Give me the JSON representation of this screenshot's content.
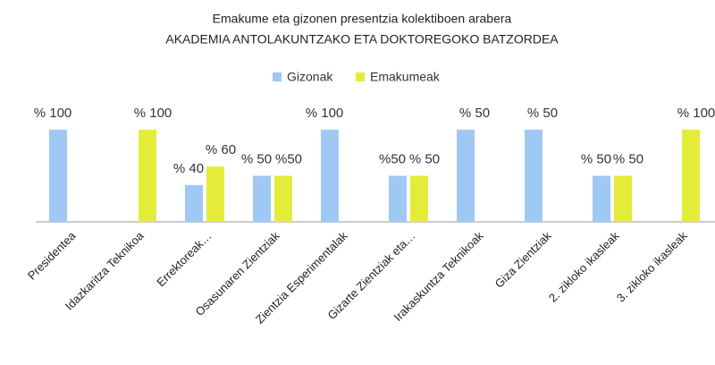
{
  "chart_data": {
    "type": "bar",
    "title": "Emakume eta gizonen presentzia kolektiboen arabera",
    "subtitle": "AKADEMIA ANTOLAKUNTZAKO ETA DOKTOREGOKO BATZORDEA",
    "categories": [
      "Presidentea",
      "Idazkaritza Teknikoa",
      "Errektoreak…",
      "Osasunaren Zientziak",
      "Zientzia Esperimentalak",
      "Gizarte Zientziak eta…",
      "Irakaskuntza Teknikoak",
      "Giza Zientziak",
      "2. zikloko ikasleak",
      "3. zikloko ikasleak"
    ],
    "series": [
      {
        "name": "Gizonak",
        "color": "#9fc8f4",
        "values": [
          100,
          0,
          40,
          50,
          100,
          50,
          100,
          100,
          50,
          0
        ],
        "value_labels": [
          "% 100",
          null,
          "% 40",
          "% 50",
          "% 100",
          "%50",
          null,
          null,
          "% 50",
          null
        ]
      },
      {
        "name": "Emakumeak",
        "color": "#e4ec3a",
        "values": [
          0,
          100,
          60,
          50,
          0,
          50,
          0,
          0,
          50,
          100
        ],
        "value_labels": [
          null,
          "% 100",
          "% 60",
          "%50",
          null,
          "% 50",
          null,
          null,
          "% 50",
          "% 100"
        ]
      }
    ],
    "annotations": [
      "% 50",
      "% 50"
    ],
    "ylim": [
      0,
      100
    ],
    "legend": "top"
  }
}
